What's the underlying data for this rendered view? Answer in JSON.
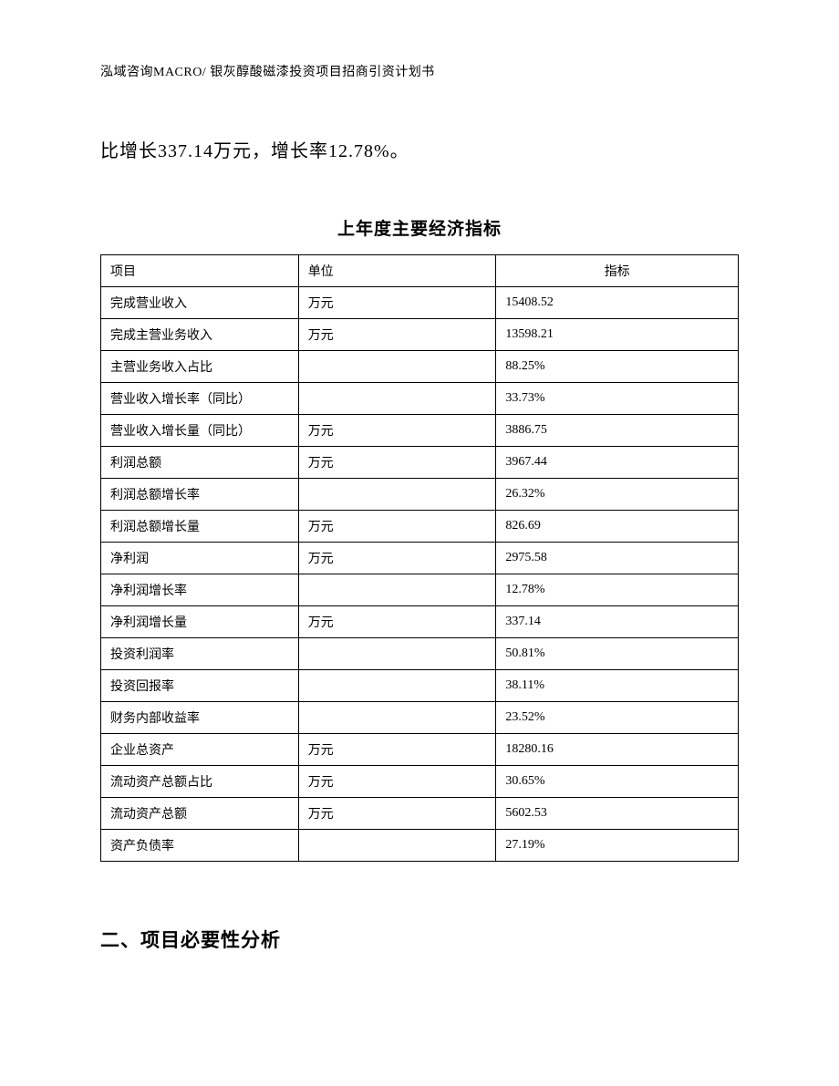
{
  "header": {
    "text": "泓域咨询MACRO/ 银灰醇酸磁漆投资项目招商引资计划书"
  },
  "intro": {
    "text": "比增长337.14万元，增长率12.78%。"
  },
  "table": {
    "title": "上年度主要经济指标",
    "columns": [
      "项目",
      "单位",
      "指标"
    ],
    "rows": [
      [
        "完成营业收入",
        "万元",
        "15408.52"
      ],
      [
        "完成主营业务收入",
        "万元",
        "13598.21"
      ],
      [
        "主营业务收入占比",
        "",
        "88.25%"
      ],
      [
        "营业收入增长率（同比）",
        "",
        "33.73%"
      ],
      [
        "营业收入增长量（同比）",
        "万元",
        "3886.75"
      ],
      [
        "利润总额",
        "万元",
        "3967.44"
      ],
      [
        "利润总额增长率",
        "",
        "26.32%"
      ],
      [
        "利润总额增长量",
        "万元",
        "826.69"
      ],
      [
        "净利润",
        "万元",
        "2975.58"
      ],
      [
        "净利润增长率",
        "",
        "12.78%"
      ],
      [
        "净利润增长量",
        "万元",
        "337.14"
      ],
      [
        "投资利润率",
        "",
        "50.81%"
      ],
      [
        "投资回报率",
        "",
        "38.11%"
      ],
      [
        "财务内部收益率",
        "",
        "23.52%"
      ],
      [
        "企业总资产",
        "万元",
        "18280.16"
      ],
      [
        "流动资产总额占比",
        "万元",
        "30.65%"
      ],
      [
        "流动资产总额",
        "万元",
        "5602.53"
      ],
      [
        "资产负债率",
        "",
        "27.19%"
      ]
    ]
  },
  "section": {
    "heading": "二、项目必要性分析"
  }
}
